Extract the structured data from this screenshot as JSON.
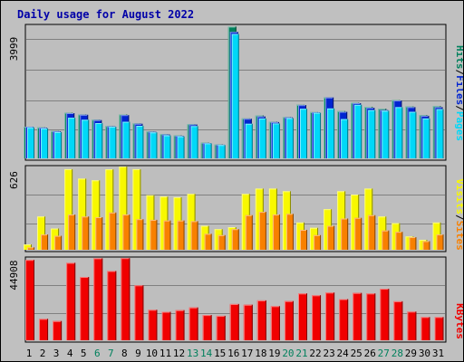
{
  "title": "Daily usage for August 2022",
  "colors": {
    "background": "#c0c0c0",
    "panel": "#bebebe",
    "hits": "#00805c",
    "files": "#0024d0",
    "pages": "#00d8f8",
    "visits": "#f8f800",
    "sites": "#f88000",
    "kbytes": "#f00000",
    "weekday_label": "#000000",
    "weekend_label": "#00805c"
  },
  "legend": {
    "hits": "Hits",
    "files": "Files",
    "pages": "Pages",
    "visits": "Visits",
    "sites": "Sites",
    "kbytes": "KBytes",
    "slash": "/"
  },
  "chart_data": [
    {
      "type": "bar",
      "panel": "hits-files-pages",
      "ymax": 3999,
      "max_label": "3999",
      "categories": [
        "1",
        "2",
        "3",
        "4",
        "5",
        "6",
        "7",
        "8",
        "9",
        "10",
        "11",
        "12",
        "13",
        "14",
        "15",
        "16",
        "17",
        "18",
        "19",
        "20",
        "21",
        "22",
        "23",
        "24",
        "25",
        "26",
        "27",
        "28",
        "29",
        "30",
        "31"
      ],
      "weekend_days": [
        "6",
        "7",
        "13",
        "14",
        "20",
        "21",
        "27",
        "28"
      ],
      "series": [
        {
          "name": "Hits",
          "values": [
            950,
            930,
            820,
            1370,
            1320,
            1160,
            970,
            1320,
            1050,
            810,
            730,
            690,
            1030,
            470,
            420,
            3960,
            1200,
            1290,
            1100,
            1240,
            1610,
            1390,
            1830,
            1420,
            1670,
            1550,
            1490,
            1750,
            1560,
            1300,
            1570
          ]
        },
        {
          "name": "Files",
          "values": [
            950,
            920,
            810,
            1360,
            1310,
            1150,
            960,
            1300,
            1040,
            800,
            720,
            680,
            1020,
            460,
            410,
            3800,
            1190,
            1260,
            1090,
            1230,
            1600,
            1380,
            1830,
            1400,
            1660,
            1520,
            1450,
            1740,
            1540,
            1280,
            1540
          ]
        },
        {
          "name": "Pages",
          "values": [
            930,
            900,
            790,
            1220,
            1160,
            1060,
            950,
            1100,
            980,
            780,
            690,
            660,
            970,
            450,
            400,
            3740,
            1040,
            1200,
            1050,
            1210,
            1490,
            1370,
            1500,
            1180,
            1610,
            1450,
            1430,
            1540,
            1400,
            1200,
            1480
          ]
        }
      ]
    },
    {
      "type": "bar",
      "panel": "visits-sites",
      "ymax": 626,
      "max_label": "626",
      "categories": [
        "1",
        "2",
        "3",
        "4",
        "5",
        "6",
        "7",
        "8",
        "9",
        "10",
        "11",
        "12",
        "13",
        "14",
        "15",
        "16",
        "17",
        "18",
        "19",
        "20",
        "21",
        "22",
        "23",
        "24",
        "25",
        "26",
        "27",
        "28",
        "29",
        "30",
        "31"
      ],
      "series": [
        {
          "name": "Visits",
          "values": [
            40,
            250,
            160,
            606,
            535,
            522,
            605,
            626,
            606,
            410,
            400,
            395,
            420,
            180,
            155,
            170,
            420,
            460,
            460,
            440,
            205,
            165,
            305,
            440,
            415,
            460,
            250,
            200,
            100,
            75,
            205
          ]
        },
        {
          "name": "Sites",
          "values": [
            18,
            115,
            105,
            265,
            250,
            245,
            280,
            265,
            230,
            225,
            220,
            220,
            215,
            120,
            110,
            155,
            260,
            285,
            265,
            270,
            150,
            110,
            180,
            235,
            240,
            260,
            145,
            135,
            95,
            65,
            115
          ]
        }
      ]
    },
    {
      "type": "bar",
      "panel": "kbytes",
      "ymax": 44908,
      "max_label": "44908",
      "categories": [
        "1",
        "2",
        "3",
        "4",
        "5",
        "6",
        "7",
        "8",
        "9",
        "10",
        "11",
        "12",
        "13",
        "14",
        "15",
        "16",
        "17",
        "18",
        "19",
        "20",
        "21",
        "22",
        "23",
        "24",
        "25",
        "26",
        "27",
        "28",
        "29",
        "30",
        "31"
      ],
      "series": [
        {
          "name": "KBytes",
          "values": [
            44300,
            11800,
            10600,
            42700,
            34900,
            45200,
            38200,
            45300,
            30300,
            16800,
            15700,
            16600,
            18100,
            13900,
            13500,
            20000,
            19600,
            22000,
            18800,
            21600,
            25800,
            24800,
            26300,
            22700,
            26100,
            25800,
            28400,
            21500,
            15800,
            12800,
            12800
          ]
        }
      ]
    }
  ]
}
